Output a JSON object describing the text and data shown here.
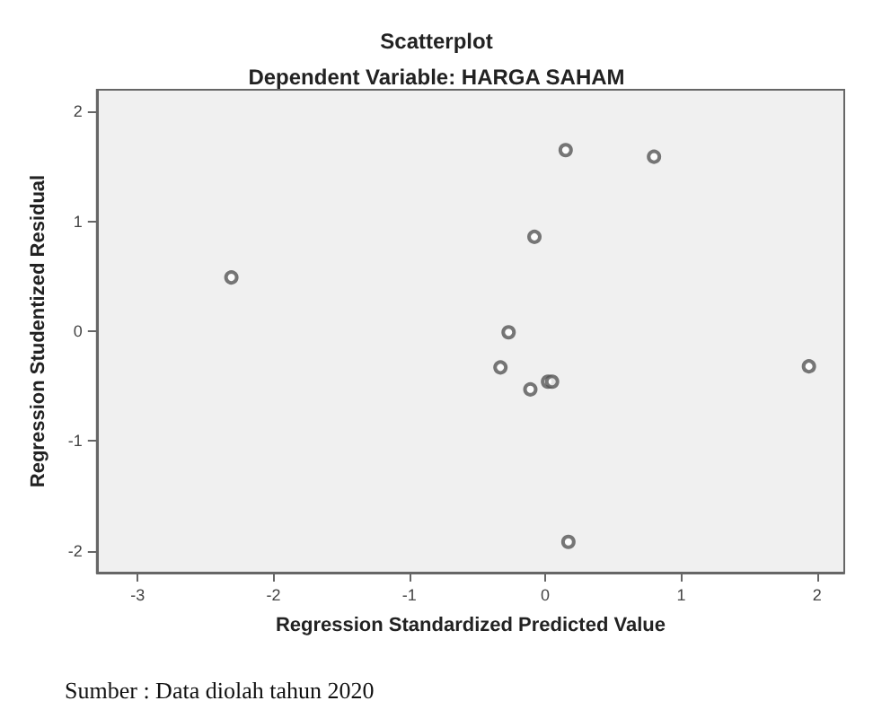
{
  "chart_data": {
    "type": "scatter",
    "title": "Scatterplot",
    "subtitle": "Dependent Variable: HARGA SAHAM",
    "xlabel": "Regression Standardized Predicted Value",
    "ylabel": "Regression Studentized Residual",
    "x": [
      -2.31,
      0.15,
      0.8,
      -0.08,
      -0.27,
      -0.33,
      -0.11,
      0.02,
      0.05,
      1.94,
      0.17
    ],
    "series": [
      {
        "color": "#555555",
        "values": [
          0.49,
          1.65,
          1.59,
          0.86,
          -0.01,
          -0.33,
          -0.53,
          -0.46,
          -0.46,
          -0.32,
          -1.92
        ]
      }
    ],
    "xlim": [
      -3.3,
      2.2
    ],
    "ylim": [
      -2.2,
      2.2
    ],
    "xticks": [
      -3,
      -2,
      -1,
      0,
      1,
      2
    ],
    "yticks": [
      -2,
      -1,
      0,
      1,
      2
    ],
    "grid": false,
    "marker": "circle",
    "annotations": [
      "Sumber : Data diolah tahun 2020"
    ]
  }
}
